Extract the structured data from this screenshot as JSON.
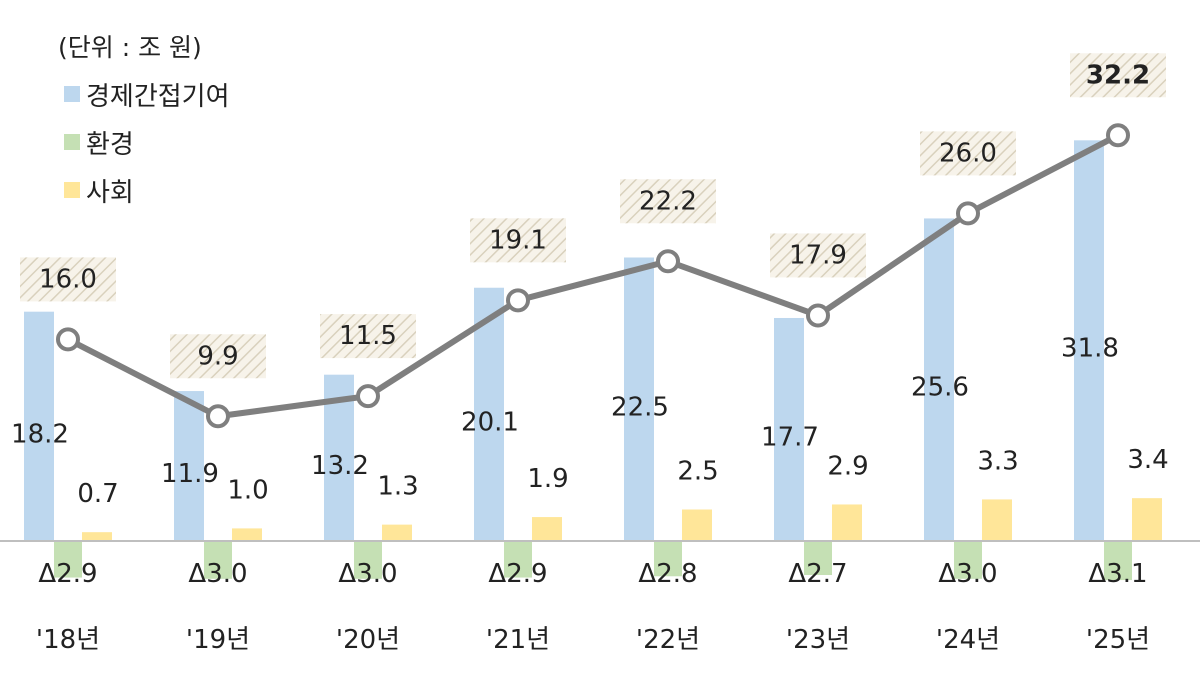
{
  "unit_label": "(단위 : 조 원)",
  "chart_data": {
    "type": "bar",
    "categories": [
      "'18년",
      "'19년",
      "'20년",
      "'21년",
      "'22년",
      "'23년",
      "'24년",
      "'25년"
    ],
    "series": [
      {
        "name": "경제간접기여",
        "color": "#bdd7ee",
        "values": [
          18.2,
          11.9,
          13.2,
          20.1,
          22.5,
          17.7,
          25.6,
          31.8
        ],
        "labels": [
          "18.2",
          "11.9",
          "13.2",
          "20.1",
          "22.5",
          "17.7",
          "25.6",
          "31.8"
        ]
      },
      {
        "name": "환경",
        "color": "#c5e0b4",
        "values": [
          -2.9,
          -3.0,
          -3.0,
          -2.9,
          -2.8,
          -2.7,
          -3.0,
          -3.1
        ],
        "labels": [
          "Δ2.9",
          "Δ3.0",
          "Δ3.0",
          "Δ2.9",
          "Δ2.8",
          "Δ2.7",
          "Δ3.0",
          "Δ3.1"
        ]
      },
      {
        "name": "사회",
        "color": "#ffe699",
        "values": [
          0.7,
          1.0,
          1.3,
          1.9,
          2.5,
          2.9,
          3.3,
          3.4
        ],
        "labels": [
          "0.7",
          "1.0",
          "1.3",
          "1.9",
          "2.5",
          "2.9",
          "3.3",
          "3.4"
        ]
      }
    ],
    "total": {
      "type": "line",
      "color": "#7f7f7f",
      "values": [
        16.0,
        9.9,
        11.5,
        19.1,
        22.2,
        17.9,
        26.0,
        32.2
      ],
      "labels": [
        "16.0",
        "9.9",
        "11.5",
        "19.1",
        "22.2",
        "17.9",
        "26.0",
        "32.2"
      ]
    },
    "ylim": [
      -3.5,
      36
    ],
    "grid": false,
    "legend_position": "top-left"
  }
}
